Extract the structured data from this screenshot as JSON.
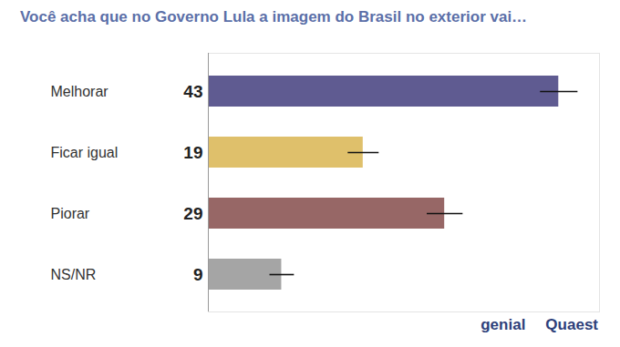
{
  "chart_data": {
    "type": "bar",
    "orientation": "horizontal",
    "title": "Você acha que no Governo Lula a imagem do Brasil no exterior vai…",
    "categories": [
      "Melhorar",
      "Ficar igual",
      "Piorar",
      "NS/NR"
    ],
    "values": [
      43,
      19,
      29,
      9
    ],
    "error": [
      2.3,
      1.9,
      2.2,
      1.5
    ],
    "colors": [
      "#5f5b91",
      "#dfc06b",
      "#976766",
      "#a5a5a5"
    ],
    "xlim": [
      0,
      48
    ],
    "xticks": [],
    "tick_labels": "y",
    "data_labels": true,
    "annotations": [
      "genial",
      "Quaest"
    ]
  }
}
